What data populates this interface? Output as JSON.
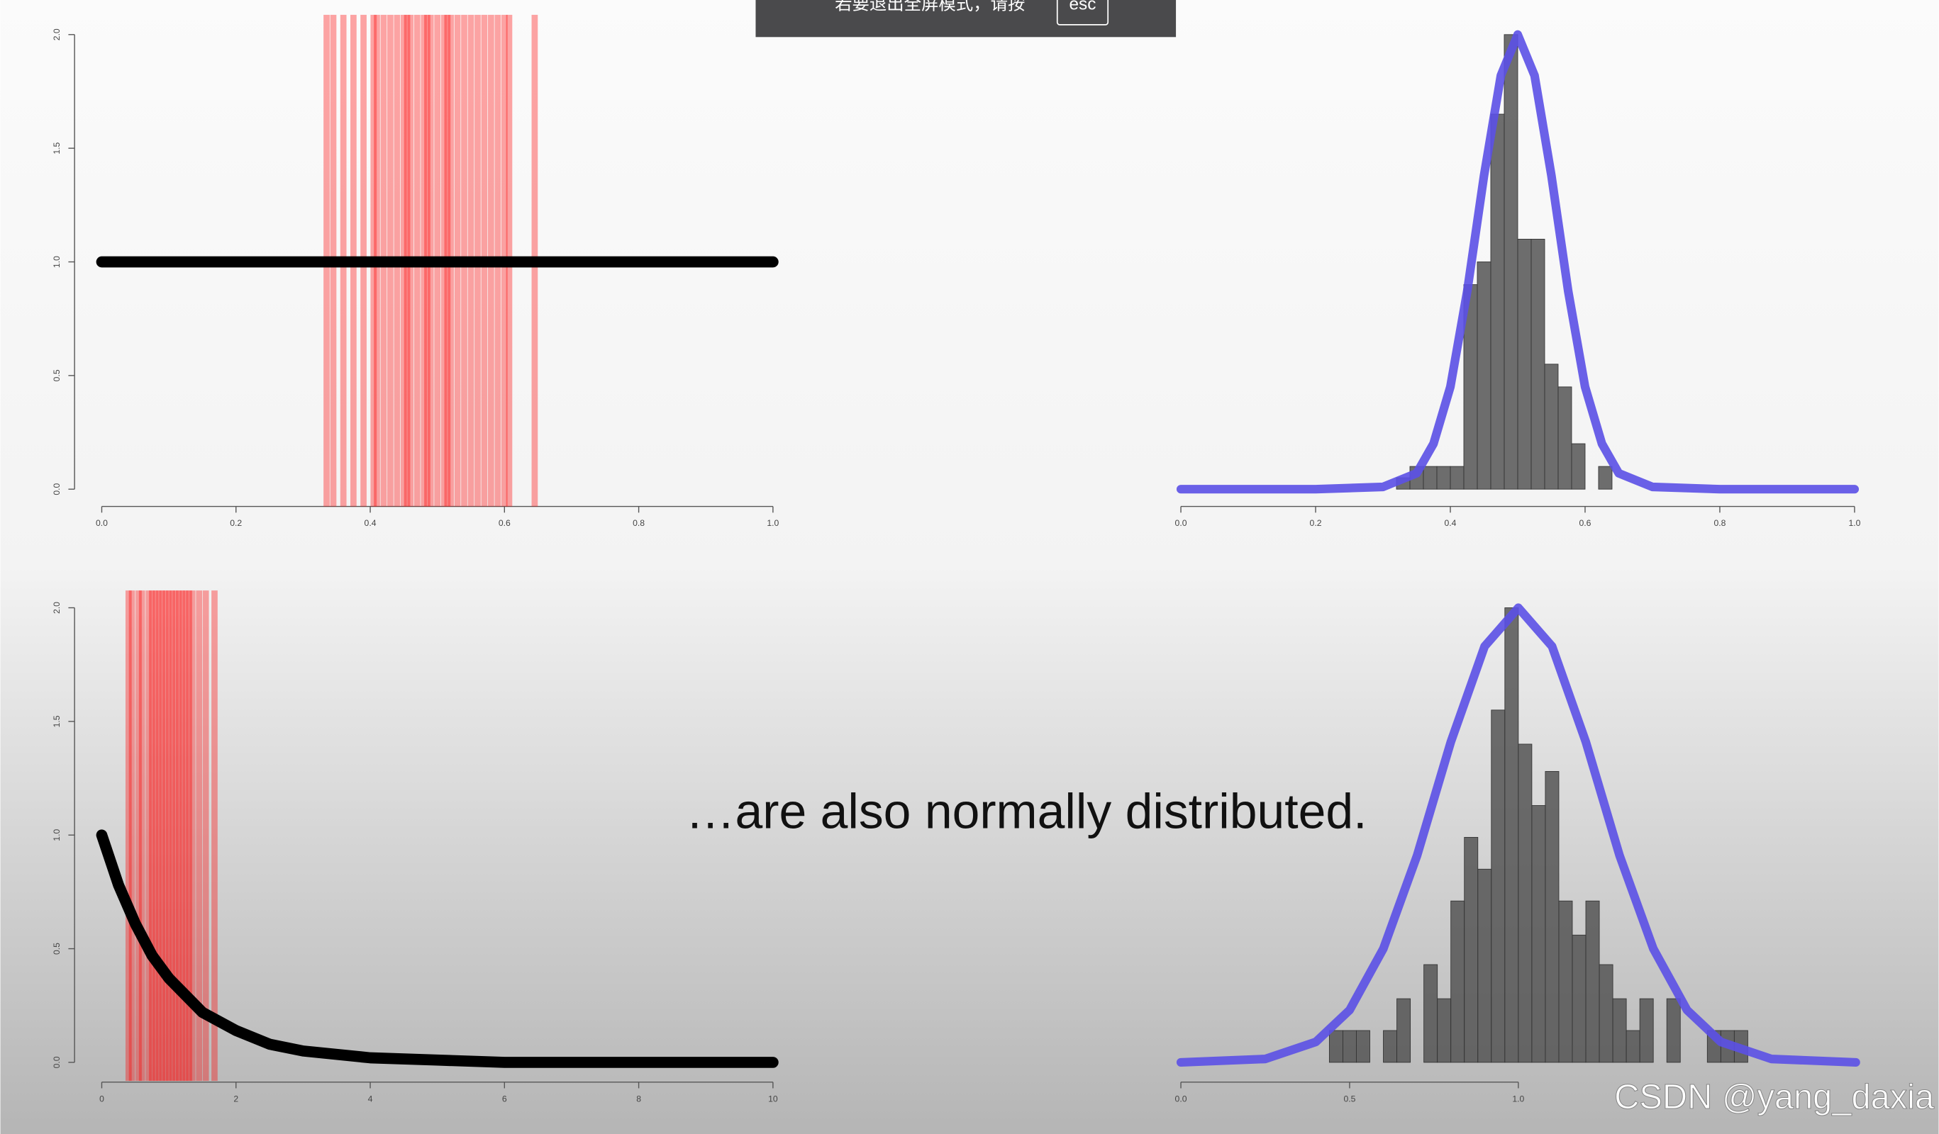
{
  "chart_data": [
    {
      "type": "line",
      "color": "#000000",
      "rug_color": "#ff0000",
      "x": [
        0,
        1
      ],
      "values": [
        1,
        1
      ],
      "rug": [
        0.335,
        0.345,
        0.36,
        0.375,
        0.39,
        0.405,
        0.41,
        0.42,
        0.43,
        0.44,
        0.45,
        0.455,
        0.46,
        0.47,
        0.48,
        0.485,
        0.49,
        0.5,
        0.51,
        0.515,
        0.52,
        0.53,
        0.54,
        0.55,
        0.56,
        0.57,
        0.58,
        0.59,
        0.6,
        0.607,
        0.645
      ],
      "xlim": [
        0,
        1
      ],
      "ylim": [
        0,
        2
      ],
      "xticks": [
        {
          "value": 0,
          "label": "0.0"
        },
        0.2,
        0.4,
        0.6,
        0.8,
        {
          "value": 1,
          "label": "1.0"
        }
      ],
      "yticks": [
        {
          "value": 0,
          "label": "0.0"
        },
        0.5,
        {
          "value": 1,
          "label": "1.0"
        },
        1.5,
        {
          "value": 2,
          "label": "2.0"
        }
      ]
    },
    {
      "type": "histogram",
      "color": "#555555",
      "bins": [
        0.32,
        0.34,
        0.36,
        0.38,
        0.4,
        0.42,
        0.44,
        0.46,
        0.48,
        0.5,
        0.52,
        0.54,
        0.56,
        0.58,
        0.6,
        0.62,
        0.64
      ],
      "counts": [
        0.05,
        0.1,
        0.1,
        0.1,
        0.1,
        0.9,
        1.0,
        1.65,
        2.0,
        1.1,
        1.1,
        0.55,
        0.45,
        0.2,
        0,
        0.1
      ],
      "curve": {
        "color": "#5b50e6",
        "x": [
          0,
          0.1,
          0.2,
          0.3,
          0.35,
          0.375,
          0.4,
          0.425,
          0.45,
          0.475,
          0.5,
          0.525,
          0.55,
          0.575,
          0.6,
          0.625,
          0.65,
          0.7,
          0.8,
          0.9,
          1
        ],
        "values": [
          0,
          0,
          0,
          0.01,
          0.07,
          0.2,
          0.45,
          0.87,
          1.38,
          1.82,
          2,
          1.82,
          1.38,
          0.87,
          0.45,
          0.2,
          0.07,
          0.01,
          0,
          0,
          0
        ]
      },
      "xlim": [
        0,
        1
      ],
      "ylim": [
        0,
        2
      ],
      "xticks": [
        {
          "value": 0,
          "label": "0.0"
        },
        0.2,
        0.4,
        0.6,
        0.8,
        {
          "value": 1,
          "label": "1.0"
        }
      ]
    },
    {
      "type": "line",
      "color": "#000000",
      "rug_color": "#ff0000",
      "x": [
        0,
        0.25,
        0.5,
        0.75,
        1,
        1.5,
        2,
        2.5,
        3,
        4,
        5,
        6,
        8,
        10
      ],
      "values": [
        1,
        0.78,
        0.61,
        0.47,
        0.37,
        0.22,
        0.14,
        0.08,
        0.05,
        0.02,
        0.01,
        0,
        0,
        0
      ],
      "rug": [
        0.4,
        0.45,
        0.55,
        0.6,
        0.7,
        0.75,
        0.8,
        0.85,
        0.9,
        0.95,
        1.0,
        1.05,
        1.1,
        1.15,
        1.2,
        1.25,
        1.3,
        1.35,
        1.45,
        1.55,
        1.68
      ],
      "xlim": [
        0,
        10
      ],
      "ylim": [
        0,
        2
      ],
      "xticks": [
        0,
        2,
        4,
        6,
        8,
        10
      ],
      "yticks": [
        {
          "value": 0,
          "label": "0.0"
        },
        0.5,
        {
          "value": 1,
          "label": "1.0"
        },
        1.5,
        {
          "value": 2,
          "label": "2.0"
        }
      ]
    },
    {
      "type": "histogram",
      "color": "#555555",
      "bins": [
        0.44,
        0.48,
        0.52,
        0.56,
        0.6,
        0.64,
        0.68,
        0.72,
        0.76,
        0.8,
        0.84,
        0.88,
        0.92,
        0.96,
        1.0,
        1.04,
        1.08,
        1.12,
        1.16,
        1.2,
        1.24,
        1.28,
        1.32,
        1.36,
        1.4,
        1.44,
        1.48,
        1.52,
        1.56,
        1.6,
        1.64,
        1.68
      ],
      "counts": [
        0.14,
        0.14,
        0.14,
        0,
        0.14,
        0.28,
        0,
        0.43,
        0.28,
        0.71,
        0.99,
        0.85,
        1.55,
        2.0,
        1.4,
        1.13,
        1.28,
        0.71,
        0.56,
        0.71,
        0.43,
        0.28,
        0.14,
        0.28,
        0,
        0.28,
        0,
        0,
        0.14,
        0.14,
        0.14
      ],
      "curve": {
        "color": "#5b50e6",
        "x": [
          0,
          0.25,
          0.4,
          0.5,
          0.6,
          0.7,
          0.8,
          0.9,
          1.0,
          1.1,
          1.2,
          1.3,
          1.4,
          1.5,
          1.6,
          1.75,
          2.0
        ],
        "values": [
          0,
          0.015,
          0.09,
          0.23,
          0.5,
          0.91,
          1.41,
          1.83,
          2,
          1.83,
          1.41,
          0.91,
          0.5,
          0.23,
          0.09,
          0.015,
          0
        ]
      },
      "xlim": [
        0,
        2
      ],
      "ylim": [
        0,
        2
      ],
      "xticks": [
        {
          "value": 0,
          "label": "0.0"
        },
        0.5,
        {
          "value": 1,
          "label": "1.0"
        }
      ]
    }
  ],
  "screen": {
    "fullscreen_hint": "若要退出全屏模式，请按",
    "esc_key": "esc",
    "caption": "…are also normally distributed.",
    "watermark": "CSDN @yang_daxia"
  }
}
